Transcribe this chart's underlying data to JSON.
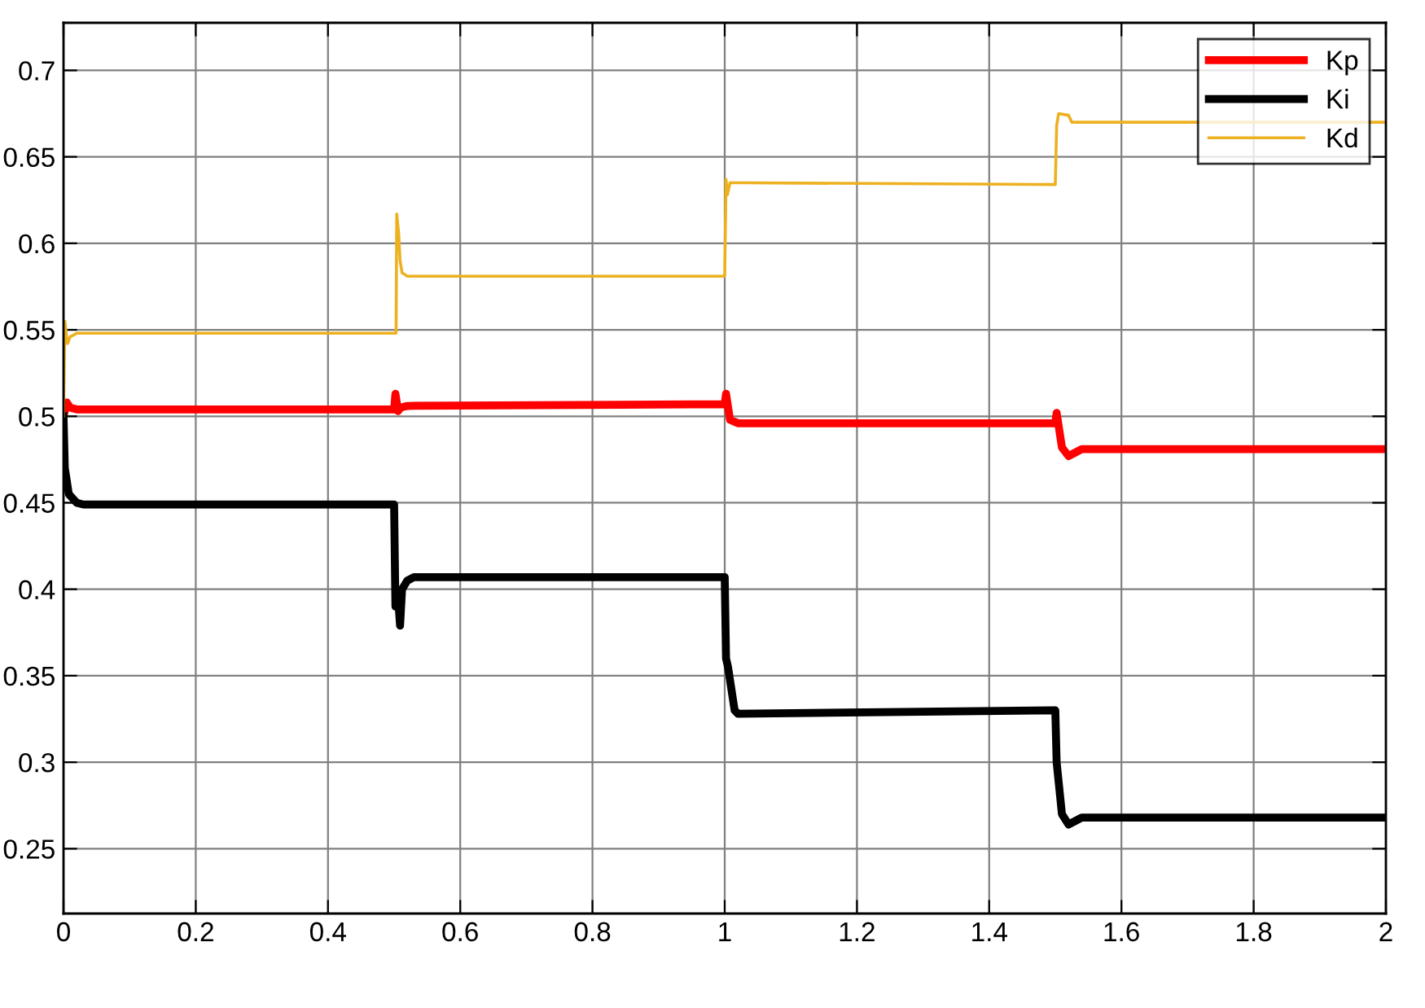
{
  "chart_data": {
    "type": "line",
    "xlim": [
      0,
      2
    ],
    "ylim": [
      0.2125,
      0.7275
    ],
    "xticks": [
      0,
      {
        "value": 0.2,
        "label": "0.2"
      },
      {
        "value": 0.4,
        "label": "0.4"
      },
      {
        "value": 0.6,
        "label": "0.6"
      },
      {
        "value": 0.8,
        "label": "0.8"
      },
      1,
      {
        "value": 1.2,
        "label": "1.2"
      },
      {
        "value": 1.4,
        "label": "1.4"
      },
      {
        "value": 1.6,
        "label": "1.6"
      },
      {
        "value": 1.8,
        "label": "1.8"
      },
      2
    ],
    "yticks": [
      0.25,
      0.3,
      0.35,
      0.4,
      0.45,
      0.5,
      0.55,
      0.6,
      0.65,
      0.7
    ],
    "grid": true,
    "legend": "top right",
    "marker": "none",
    "line_style": "solid",
    "series": [
      {
        "name": "Kp",
        "color": "#ff0000",
        "x": [
          0,
          0.005,
          0.01,
          0.02,
          0.5,
          0.502,
          0.506,
          0.51,
          0.52,
          1.0,
          1.002,
          1.008,
          1.02,
          1.04,
          1.5,
          1.502,
          1.51,
          1.52,
          1.54,
          2
        ],
        "values": [
          0.5,
          0.508,
          0.505,
          0.504,
          0.504,
          0.513,
          0.503,
          0.505,
          0.506,
          0.507,
          0.513,
          0.498,
          0.496,
          0.496,
          0.496,
          0.502,
          0.482,
          0.477,
          0.481,
          0.481
        ]
      },
      {
        "name": "Ki",
        "color": "#000000",
        "x": [
          0,
          0.002,
          0.008,
          0.02,
          0.03,
          0.5,
          0.502,
          0.506,
          0.509,
          0.512,
          0.52,
          0.53,
          1.0,
          1.002,
          1.005,
          1.015,
          1.02,
          1.5,
          1.502,
          1.51,
          1.52,
          1.54,
          2
        ],
        "values": [
          0.5,
          0.47,
          0.455,
          0.45,
          0.449,
          0.449,
          0.39,
          0.395,
          0.379,
          0.4,
          0.405,
          0.407,
          0.407,
          0.36,
          0.355,
          0.33,
          0.328,
          0.33,
          0.3,
          0.27,
          0.264,
          0.268,
          0.268
        ]
      },
      {
        "name": "Kd",
        "color": "#edb120",
        "x": [
          0,
          0.002,
          0.006,
          0.01,
          0.02,
          0.503,
          0.504,
          0.507,
          0.509,
          0.512,
          0.52,
          1.0,
          1.002,
          1.004,
          1.008,
          1.015,
          1.03,
          1.5,
          1.502,
          1.505,
          1.52,
          1.525,
          2
        ],
        "values": [
          0.5,
          0.555,
          0.542,
          0.546,
          0.548,
          0.548,
          0.617,
          0.605,
          0.59,
          0.583,
          0.581,
          0.581,
          0.637,
          0.628,
          0.635,
          0.635,
          0.635,
          0.634,
          0.668,
          0.675,
          0.674,
          0.67,
          0.67
        ]
      }
    ]
  }
}
